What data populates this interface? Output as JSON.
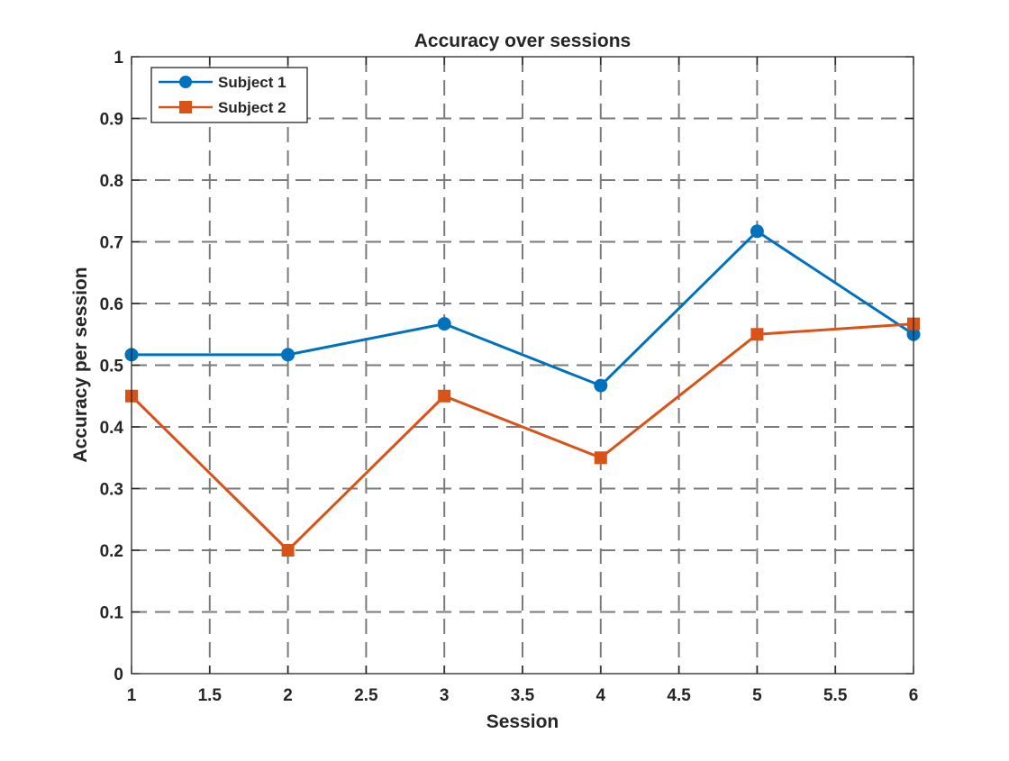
{
  "chart_data": {
    "type": "line",
    "title": "Accuracy over sessions",
    "xlabel": "Session",
    "ylabel": "Accuracy per session",
    "xlim": [
      1,
      6
    ],
    "ylim": [
      0,
      1
    ],
    "xticks": [
      1,
      1.5,
      2,
      2.5,
      3,
      3.5,
      4,
      4.5,
      5,
      5.5,
      6
    ],
    "yticks": [
      0,
      0.1,
      0.2,
      0.3,
      0.4,
      0.5,
      0.6,
      0.7,
      0.8,
      0.9,
      1
    ],
    "x": [
      1,
      2,
      3,
      4,
      5,
      6
    ],
    "grid": true,
    "grid_style": "dashed",
    "legend_position": "top-left",
    "series": [
      {
        "name": "Subject 1",
        "values": [
          0.517,
          0.517,
          0.567,
          0.467,
          0.717,
          0.55
        ],
        "color": "#0072BD",
        "marker": "circle"
      },
      {
        "name": "Subject 2",
        "values": [
          0.45,
          0.2,
          0.45,
          0.35,
          0.55,
          0.567
        ],
        "color": "#D95319",
        "marker": "square"
      }
    ]
  }
}
